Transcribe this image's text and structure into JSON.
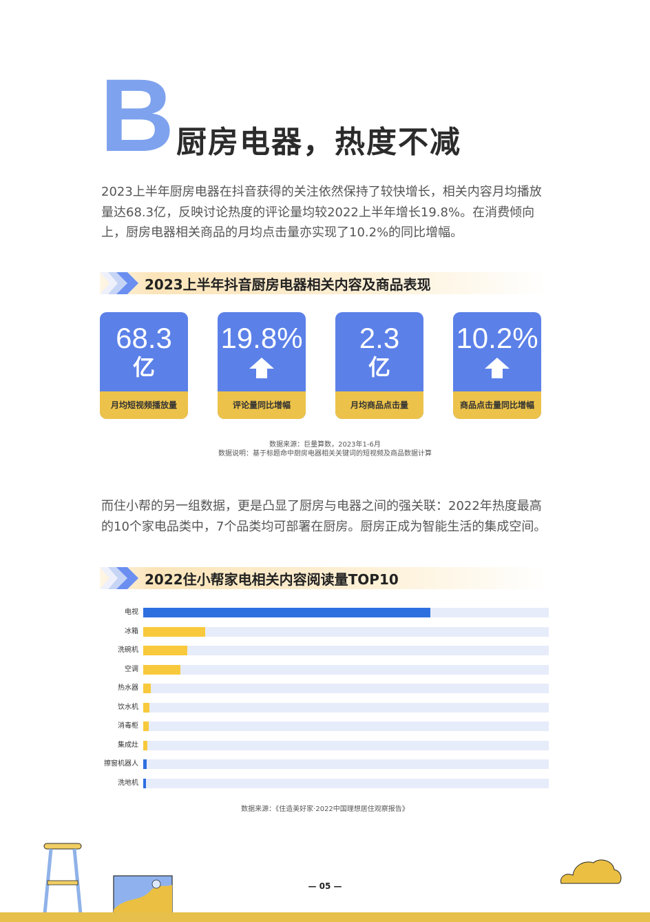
{
  "header": {
    "letter": "B",
    "title": "厨房电器，热度不减"
  },
  "intro": "2023上半年厨房电器在抖音获得的关注依然保持了较快增长，相关内容月均播放量达68.3亿，反映讨论热度的评论量均较2022上半年增长19.8%。在消费倾向上，厨房电器相关商品的月均点击量亦实现了10.2%的同比增幅。",
  "section1": {
    "title": "2023上半年抖音厨房电器相关内容及商品表现",
    "cards": [
      {
        "value": "68.3",
        "unit": "亿",
        "label": "月均短视频播放量"
      },
      {
        "value": "19.8%",
        "unit": "",
        "label": "评论量同比增幅",
        "icon": "up-arrow-icon"
      },
      {
        "value": "2.3",
        "unit": "亿",
        "label": "月均商品点击量"
      },
      {
        "value": "10.2%",
        "unit": "",
        "label": "商品点击量同比增幅",
        "icon": "up-arrow-icon"
      }
    ],
    "source_line1": "数据来源：巨量算数，2023年1-6月",
    "source_line2": "数据说明：基于标题命中厨房电器相关关键词的短视频及商品数据计算"
  },
  "para2": "而住小帮的另一组数据，更是凸显了厨房与电器之间的强关联：2022年热度最高的10个家电品类中，7个品类均可部署在厨房。厨房正成为智能生活的集成空间。",
  "section2": {
    "title": "2022住小帮家电相关内容阅读量TOP10",
    "source": "数据来源：《住造美好家·2022中国理想居住观察报告》"
  },
  "chart_data": {
    "type": "bar",
    "orientation": "horizontal",
    "categories": [
      "电视",
      "冰箱",
      "洗碗机",
      "空调",
      "热水器",
      "饮水机",
      "消毒柜",
      "集成灶",
      "擦窗机器人",
      "洗地机"
    ],
    "values": [
      0.708,
      0.152,
      0.108,
      0.092,
      0.018,
      0.016,
      0.013,
      0.011,
      0.008,
      0.006
    ],
    "value_scale": "fraction of axis length (axis unlabeled)",
    "bar_colors": [
      "#2e6fe0",
      "#f8c93c",
      "#f8c93c",
      "#f8c93c",
      "#f8c93c",
      "#f8c93c",
      "#f8c93c",
      "#f8c93c",
      "#2e6fe0",
      "#2e6fe0"
    ],
    "track_color": "#e7ecfb",
    "grid": false
  },
  "footer": {
    "page": "— 05 —"
  },
  "colors": {
    "accent_blue": "#5b80e8",
    "accent_yellow": "#ecc24a",
    "letter_blue": "#7ea2ee"
  }
}
